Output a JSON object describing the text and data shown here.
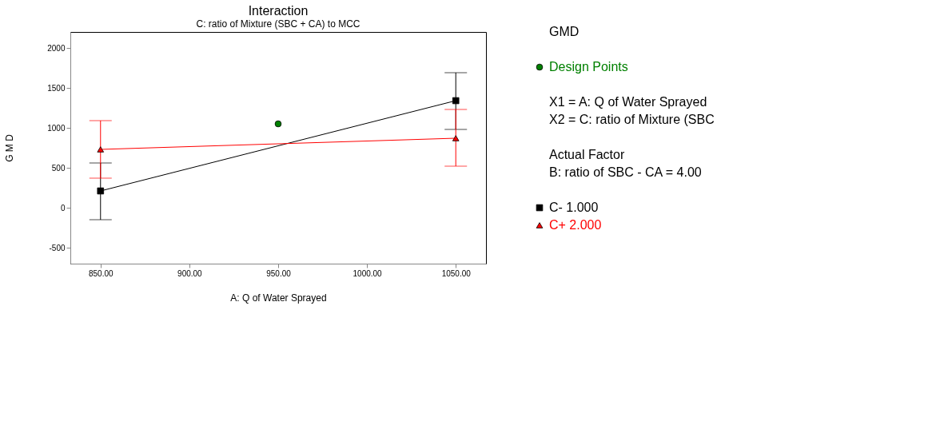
{
  "chart_data": {
    "type": "line",
    "title": "Interaction",
    "subtitle": "C: ratio of Mixture (SBC + CA) to MCC",
    "xlabel": "A: Q of Water Sprayed",
    "ylabel": "G M D",
    "series": [
      {
        "name": "C- 1.000",
        "color": "#000000",
        "marker": "square",
        "x": [
          850,
          1050
        ],
        "values": [
          210,
          1340
        ],
        "errors": [
          [
            -150,
            560
          ],
          [
            980,
            1690
          ]
        ]
      },
      {
        "name": "C+ 2.000",
        "color": "#ff0000",
        "marker": "triangle",
        "x": [
          850,
          1050
        ],
        "values": [
          730,
          870
        ],
        "errors": [
          [
            370,
            1090
          ],
          [
            520,
            1230
          ]
        ]
      },
      {
        "name": "Design Points",
        "type": "scatter",
        "color": "#008000",
        "marker": "circle",
        "x": [
          950
        ],
        "values": [
          1050
        ]
      }
    ],
    "xlim": [
      833,
      1067
    ],
    "ylim": [
      -700,
      2200
    ],
    "xticks": [
      {
        "value": 850,
        "label": "850.00"
      },
      {
        "value": 900,
        "label": "900.00"
      },
      {
        "value": 950,
        "label": "950.00"
      },
      {
        "value": 1000,
        "label": "1000.00"
      },
      {
        "value": 1050,
        "label": "1050.00"
      }
    ],
    "yticks": [
      -500,
      0,
      500,
      1000,
      1500,
      2000
    ],
    "grid": false,
    "legend": "right",
    "annotations": [
      "GMD",
      "X1 = A: Q of Water Sprayed",
      "X2 = C: ratio of Mixture (SBC",
      "Actual Factor",
      "B: ratio of SBC - CA = 4.00"
    ]
  }
}
